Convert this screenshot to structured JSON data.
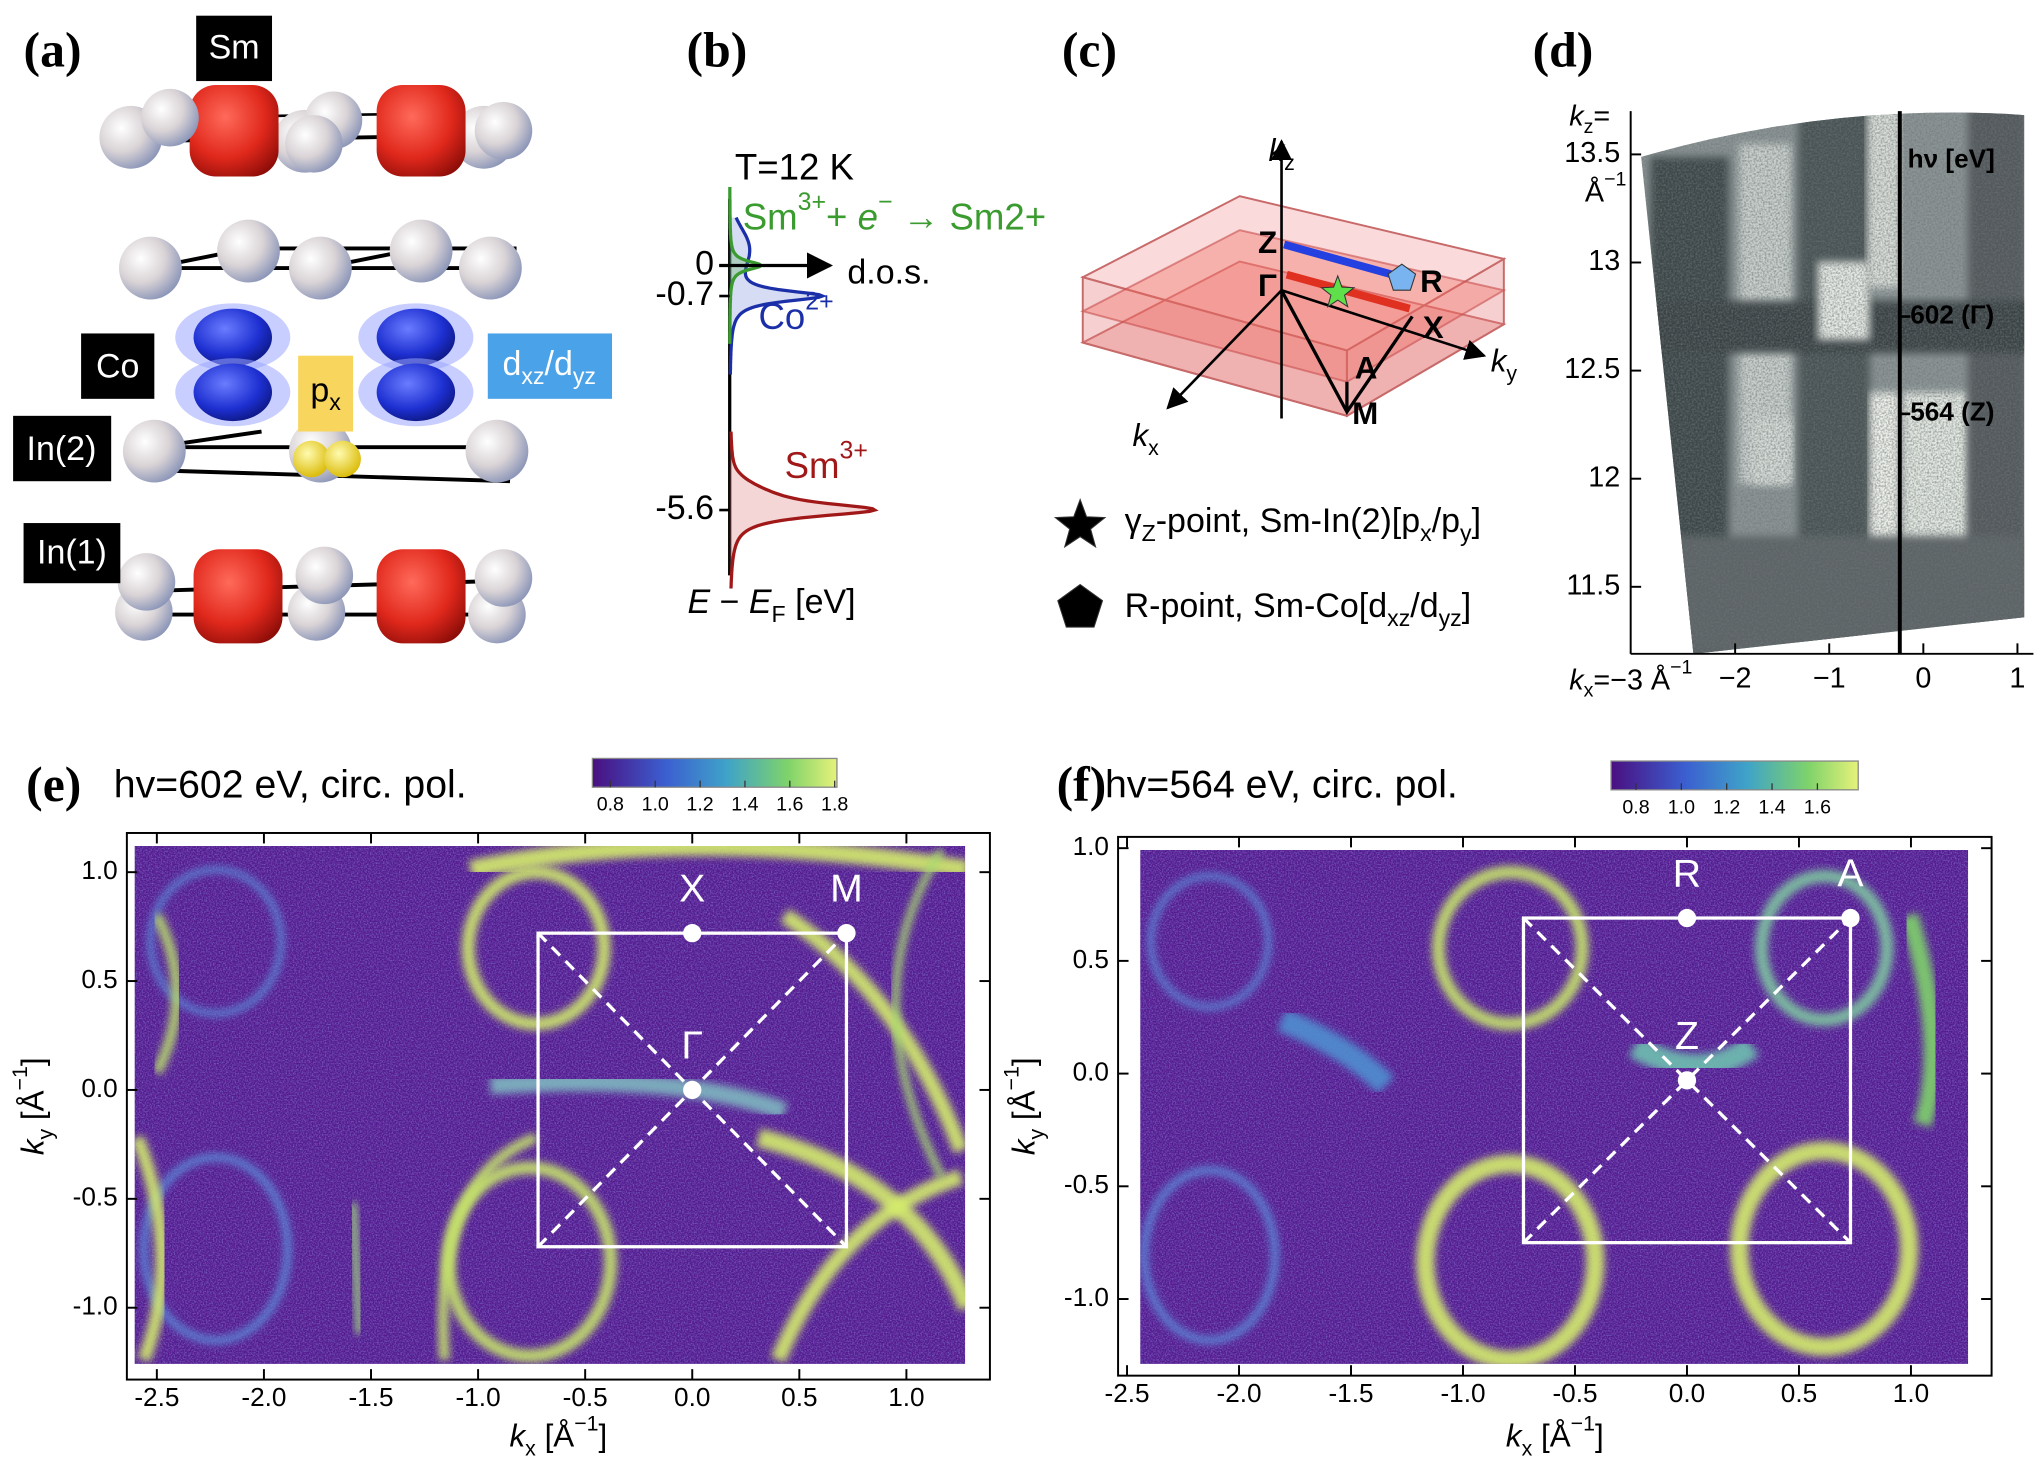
{
  "panel_labels": {
    "a": "(a)",
    "b": "(b)",
    "c": "(c)",
    "d": "(d)",
    "e": "(e)",
    "f": "(f)"
  },
  "a": {
    "Sm": "Sm",
    "Co": "Co",
    "In2": "In(2)",
    "In1": "In(1)",
    "px": [
      "p",
      "x"
    ],
    "d": [
      "d",
      "xz",
      "/d",
      "yz"
    ]
  },
  "b": {
    "temperature": "T=12 K",
    "reaction": [
      "Sm",
      "3+",
      "+ ",
      "e",
      "−",
      " → Sm",
      "2+"
    ],
    "axis": "d.o.s.",
    "co": [
      "Co",
      "2+"
    ],
    "sm": [
      "Sm",
      "3+"
    ],
    "energy_label": [
      "E",
      " − ",
      "E",
      "F",
      " [eV]"
    ],
    "energy_ticks": [
      0,
      -0.7,
      -5.6
    ]
  },
  "c": {
    "kz": [
      "k",
      "z"
    ],
    "ky": [
      "k",
      "y"
    ],
    "kx": [
      "k",
      "x"
    ],
    "points": {
      "Z": "Z",
      "G": "Γ",
      "R": "R",
      "X": "X",
      "A": "A",
      "M": "M"
    },
    "legend": [
      [
        "γ",
        "Z",
        "-point, Sm-In(2)[p",
        "x",
        "/p",
        "y",
        "]"
      ],
      [
        "R-point, Sm-Co[d",
        "xz",
        "/d",
        "yz",
        "]"
      ]
    ]
  },
  "d": {
    "xlim": [
      -3.11,
      1.17
    ],
    "ylim": [
      11.19,
      13.7
    ],
    "yticks": [
      13.5,
      13,
      12.5,
      12,
      11.5
    ],
    "xticks": [
      {
        "value": -2,
        "label": "−2"
      },
      {
        "value": -1,
        "label": "−1"
      },
      0,
      1
    ],
    "kz_label": [
      "k",
      "z",
      "="
    ],
    "kz_unit": [
      "Å",
      "−1"
    ],
    "kx_label": [
      "k",
      "x",
      "=−3 Å",
      "−1"
    ],
    "hv_label": "hν [eV]",
    "hv_line_kx": -0.25,
    "hv_marks": [
      {
        "label": "602 (Γ)",
        "kz": 12.75
      },
      {
        "label": "564 (Z)",
        "kz": 12.3
      }
    ]
  },
  "e": {
    "title": "hv=602 eV, circ. pol.",
    "xlim": [
      -2.64,
      1.39
    ],
    "ylim": [
      -1.33,
      1.18
    ],
    "xticks": [
      -2.5,
      {
        "value": -2,
        "label": "-2.0"
      },
      -1.5,
      {
        "value": -1,
        "label": "-1.0"
      },
      -0.5,
      {
        "value": 0,
        "label": "0.0"
      },
      0.5,
      {
        "value": 1,
        "label": "1.0"
      }
    ],
    "yticks": [
      {
        "value": -1,
        "label": "-1.0"
      },
      -0.5,
      {
        "value": 0,
        "label": "0.0"
      },
      0.5,
      {
        "value": 1,
        "label": "1.0"
      }
    ],
    "xlabel": [
      "k",
      "x",
      " [Å",
      "−1",
      "]"
    ],
    "ylabel": [
      "k",
      "y",
      " [Å",
      "−1",
      "]"
    ],
    "zone": {
      "kx": [
        -0.72,
        0.72
      ],
      "ky": [
        -0.72,
        0.72
      ]
    },
    "points": [
      {
        "label": "X",
        "kx": 0,
        "ky": 0.72
      },
      {
        "label": "M",
        "kx": 0.72,
        "ky": 0.72
      },
      {
        "label": "Γ",
        "kx": 0,
        "ky": 0
      }
    ],
    "colorbar": {
      "lim": [
        0.72,
        1.81
      ],
      "ticks": [
        0.8,
        {
          "value": 1,
          "label": "1.0"
        },
        1.2,
        1.4,
        1.6,
        1.8
      ]
    }
  },
  "f": {
    "title": "hv=564 eV, circ. pol.",
    "xlim": [
      -2.54,
      1.36
    ],
    "ylim": [
      -1.34,
      1.05
    ],
    "xticks": [
      -2.5,
      {
        "value": -2,
        "label": "-2.0"
      },
      -1.5,
      {
        "value": -1,
        "label": "-1.0"
      },
      -0.5,
      {
        "value": 0,
        "label": "0.0"
      },
      0.5,
      {
        "value": 1,
        "label": "1.0"
      }
    ],
    "yticks": [
      {
        "value": -1,
        "label": "-1.0"
      },
      -0.5,
      {
        "value": 0,
        "label": "0.0"
      },
      0.5,
      {
        "value": 1,
        "label": "1.0"
      }
    ],
    "xlabel": [
      "k",
      "x",
      " [Å",
      "−1",
      "]"
    ],
    "ylabel": [
      "k",
      "y",
      " [Å",
      "−1",
      "]"
    ],
    "zone": {
      "kx": [
        -0.73,
        0.73
      ],
      "ky": [
        -0.75,
        0.69
      ]
    },
    "points": [
      {
        "label": "R",
        "kx": 0,
        "ky": 0.69
      },
      {
        "label": "A",
        "kx": 0.73,
        "ky": 0.69
      },
      {
        "label": "Z",
        "kx": 0,
        "ky": -0.03
      }
    ],
    "colorbar": {
      "lim": [
        0.69,
        1.78
      ],
      "ticks": [
        0.8,
        {
          "value": 1,
          "label": "1.0"
        },
        1.2,
        1.4,
        1.6
      ]
    }
  }
}
